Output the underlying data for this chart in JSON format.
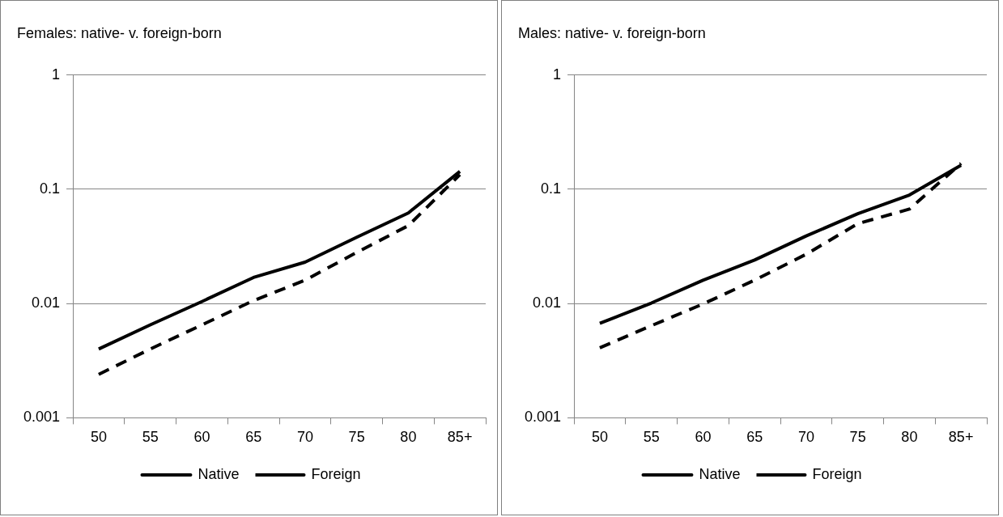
{
  "chart_data": [
    {
      "type": "line",
      "title": "Females: native- v. foreign-born",
      "categories": [
        "50",
        "55",
        "60",
        "65",
        "70",
        "75",
        "80",
        "85+"
      ],
      "series": [
        {
          "name": "Native",
          "color": "#000000",
          "line_style": "solid",
          "values": [
            0.004,
            0.0065,
            0.0104,
            0.0169,
            0.023,
            0.038,
            0.062,
            0.143
          ]
        },
        {
          "name": "Foreign",
          "color": "#000000",
          "line_style": "dashed",
          "values": [
            0.0024,
            0.004,
            0.0065,
            0.0106,
            0.016,
            0.028,
            0.048,
            0.134
          ]
        }
      ],
      "log": "y",
      "ylim": [
        0.001,
        1
      ],
      "yticks": [
        0.001,
        0.01,
        0.1,
        1
      ],
      "grid": "y",
      "legend": "bottom",
      "marker": "none"
    },
    {
      "type": "line",
      "title": "Males: native- v. foreign-born",
      "categories": [
        "50",
        "55",
        "60",
        "65",
        "70",
        "75",
        "80",
        "85+"
      ],
      "series": [
        {
          "name": "Native",
          "color": "#000000",
          "line_style": "solid",
          "values": [
            0.0067,
            0.0101,
            0.016,
            0.024,
            0.039,
            0.061,
            0.089,
            0.162
          ]
        },
        {
          "name": "Foreign",
          "color": "#000000",
          "line_style": "dashed",
          "values": [
            0.0041,
            0.0064,
            0.0099,
            0.016,
            0.027,
            0.05,
            0.067,
            0.168
          ]
        }
      ],
      "log": "y",
      "ylim": [
        0.001,
        1
      ],
      "yticks": [
        0.001,
        0.01,
        0.1,
        1
      ],
      "grid": "y",
      "legend": "bottom",
      "marker": "none"
    }
  ]
}
